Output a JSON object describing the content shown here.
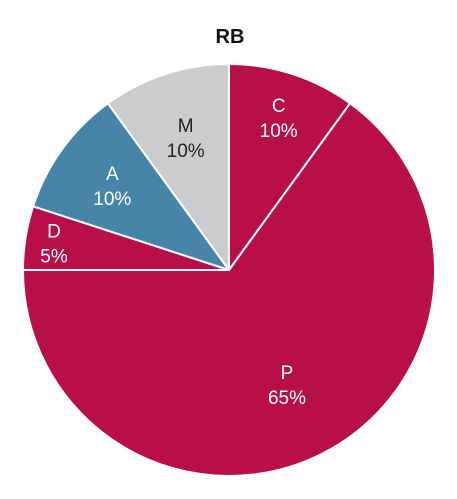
{
  "chart_data": {
    "type": "pie",
    "title": "RB",
    "slices": [
      {
        "label": "C",
        "value": 10,
        "display": "10%",
        "color": "#b80f4a",
        "text_color": "#ffffff"
      },
      {
        "label": "P",
        "value": 65,
        "display": "65%",
        "color": "#b80f4a",
        "text_color": "#ffffff"
      },
      {
        "label": "D",
        "value": 5,
        "display": "5%",
        "color": "#b80f4a",
        "text_color": "#ffffff"
      },
      {
        "label": "A",
        "value": 10,
        "display": "10%",
        "color": "#4785a8",
        "text_color": "#ffffff"
      },
      {
        "label": "M",
        "value": 10,
        "display": "10%",
        "color": "#cbcccd",
        "text_color": "#222222"
      }
    ],
    "start": "12 o'clock",
    "direction": "clockwise",
    "slice_border": "#ffffff",
    "legend": "none"
  }
}
